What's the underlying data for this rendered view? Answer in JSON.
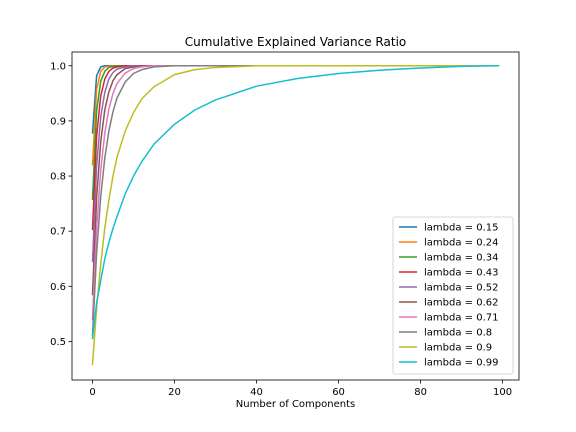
{
  "chart_data": {
    "type": "line",
    "title": "Cumulative Explained Variance Ratio",
    "xlabel": "Number of Components",
    "ylabel": "",
    "xlim": [
      -5,
      104
    ],
    "ylim": [
      0.43,
      1.025
    ],
    "x_ticks": [
      0,
      20,
      40,
      60,
      80,
      100
    ],
    "y_ticks": [
      0.5,
      0.6,
      0.7,
      0.8,
      0.9,
      1.0
    ],
    "x_tick_labels": [
      "0",
      "20",
      "40",
      "60",
      "80",
      "100"
    ],
    "y_tick_labels": [
      "0.5",
      "0.6",
      "0.7",
      "0.8",
      "0.9",
      "1.0"
    ],
    "grid": false,
    "legend_position": "lower-right",
    "x": [
      0,
      1,
      2,
      3,
      4,
      5,
      6,
      8,
      10,
      12,
      15,
      20,
      25,
      30,
      40,
      50,
      60,
      70,
      80,
      90,
      99
    ],
    "series": [
      {
        "name": "lambda = 0.15",
        "color": "#1f77b4",
        "values": [
          0.878,
          0.982,
          0.998,
          1.0,
          1.0,
          1.0,
          1.0,
          1.0,
          1.0,
          1.0,
          1.0,
          1.0,
          1.0,
          1.0,
          1.0,
          1.0,
          1.0,
          1.0,
          1.0,
          1.0,
          1.0
        ]
      },
      {
        "name": "lambda = 0.24",
        "color": "#ff7f0e",
        "values": [
          0.82,
          0.957,
          0.99,
          0.998,
          0.999,
          1.0,
          1.0,
          1.0,
          1.0,
          1.0,
          1.0,
          1.0,
          1.0,
          1.0,
          1.0,
          1.0,
          1.0,
          1.0,
          1.0,
          1.0,
          1.0
        ]
      },
      {
        "name": "lambda = 0.34",
        "color": "#2ca02c",
        "values": [
          0.758,
          0.918,
          0.972,
          0.99,
          0.997,
          0.999,
          1.0,
          1.0,
          1.0,
          1.0,
          1.0,
          1.0,
          1.0,
          1.0,
          1.0,
          1.0,
          1.0,
          1.0,
          1.0,
          1.0,
          1.0
        ]
      },
      {
        "name": "lambda = 0.43",
        "color": "#d62728",
        "values": [
          0.703,
          0.872,
          0.945,
          0.976,
          0.99,
          0.996,
          0.998,
          1.0,
          1.0,
          1.0,
          1.0,
          1.0,
          1.0,
          1.0,
          1.0,
          1.0,
          1.0,
          1.0,
          1.0,
          1.0,
          1.0
        ]
      },
      {
        "name": "lambda = 0.52",
        "color": "#9467bd",
        "values": [
          0.645,
          0.818,
          0.907,
          0.952,
          0.976,
          0.988,
          0.994,
          0.998,
          1.0,
          1.0,
          1.0,
          1.0,
          1.0,
          1.0,
          1.0,
          1.0,
          1.0,
          1.0,
          1.0,
          1.0,
          1.0
        ]
      },
      {
        "name": "lambda = 0.62",
        "color": "#8c564b",
        "values": [
          0.585,
          0.76,
          0.862,
          0.92,
          0.953,
          0.973,
          0.984,
          0.995,
          0.998,
          1.0,
          1.0,
          1.0,
          1.0,
          1.0,
          1.0,
          1.0,
          1.0,
          1.0,
          1.0,
          1.0,
          1.0
        ]
      },
      {
        "name": "lambda = 0.71",
        "color": "#e377c2",
        "values": [
          0.54,
          0.705,
          0.81,
          0.878,
          0.922,
          0.95,
          0.968,
          0.987,
          0.995,
          0.998,
          1.0,
          1.0,
          1.0,
          1.0,
          1.0,
          1.0,
          1.0,
          1.0,
          1.0,
          1.0,
          1.0
        ]
      },
      {
        "name": "lambda = 0.8",
        "color": "#7f7f7f",
        "values": [
          0.51,
          0.66,
          0.762,
          0.833,
          0.882,
          0.917,
          0.942,
          0.971,
          0.986,
          0.993,
          0.998,
          1.0,
          1.0,
          1.0,
          1.0,
          1.0,
          1.0,
          1.0,
          1.0,
          1.0,
          1.0
        ]
      },
      {
        "name": "lambda = 0.9",
        "color": "#bcbd22",
        "values": [
          0.458,
          0.56,
          0.64,
          0.706,
          0.757,
          0.8,
          0.835,
          0.882,
          0.915,
          0.94,
          0.962,
          0.984,
          0.993,
          0.997,
          1.0,
          1.0,
          1.0,
          1.0,
          1.0,
          1.0,
          1.0
        ]
      },
      {
        "name": "lambda = 0.99",
        "color": "#17becf",
        "values": [
          0.505,
          0.57,
          0.61,
          0.65,
          0.68,
          0.705,
          0.727,
          0.768,
          0.8,
          0.826,
          0.858,
          0.894,
          0.92,
          0.938,
          0.963,
          0.977,
          0.986,
          0.992,
          0.996,
          0.999,
          1.0
        ]
      }
    ]
  }
}
